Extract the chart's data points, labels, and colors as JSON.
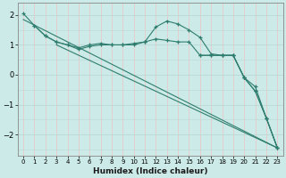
{
  "xlabel": "Humidex (Indice chaleur)",
  "bg_color": "#cceae8",
  "grid_color_v": "#e8c8c8",
  "grid_color_h": "#b8d8d5",
  "line_color": "#2e7d6e",
  "xlim": [
    -0.5,
    23.5
  ],
  "ylim": [
    -2.7,
    2.4
  ],
  "yticks": [
    -2,
    -1,
    0,
    1,
    2
  ],
  "xticks": [
    0,
    1,
    2,
    3,
    4,
    5,
    6,
    7,
    8,
    9,
    10,
    11,
    12,
    13,
    14,
    15,
    16,
    17,
    18,
    19,
    20,
    21,
    22,
    23
  ],
  "series": [
    {
      "x": [
        0,
        1,
        2,
        3,
        4,
        5,
        6,
        7,
        8,
        9,
        10,
        11,
        12,
        13,
        14,
        15,
        16,
        17,
        18,
        19,
        20,
        21,
        22,
        23
      ],
      "y": [
        2.05,
        1.65,
        1.3,
        1.1,
        1.0,
        0.9,
        1.0,
        1.05,
        1.0,
        1.0,
        1.05,
        1.1,
        1.6,
        1.8,
        1.7,
        1.5,
        1.25,
        0.7,
        0.65,
        0.65,
        -0.1,
        -0.55,
        -1.45,
        -2.45
      ],
      "marker": true
    },
    {
      "x": [
        1,
        2,
        3,
        4,
        5,
        6,
        7,
        8,
        9,
        10,
        11,
        12,
        13,
        14,
        15,
        16,
        17,
        18,
        19,
        20,
        21,
        22,
        23
      ],
      "y": [
        1.65,
        1.3,
        1.1,
        1.0,
        0.85,
        0.95,
        1.0,
        1.0,
        1.0,
        1.0,
        1.1,
        1.2,
        1.15,
        1.1,
        1.1,
        0.65,
        0.65,
        0.65,
        0.65,
        -0.1,
        -0.4,
        -1.45,
        -2.45
      ],
      "marker": true
    },
    {
      "x": [
        0,
        23
      ],
      "y": [
        1.85,
        -2.45
      ],
      "marker": false
    },
    {
      "x": [
        3,
        23
      ],
      "y": [
        1.0,
        -2.45
      ],
      "marker": false
    },
    {
      "x": [
        16,
        17,
        18,
        19,
        20,
        21,
        22,
        23
      ],
      "y": [
        0.65,
        0.65,
        0.65,
        0.65,
        -0.1,
        -0.55,
        -1.45,
        -2.45
      ],
      "marker": true
    }
  ]
}
